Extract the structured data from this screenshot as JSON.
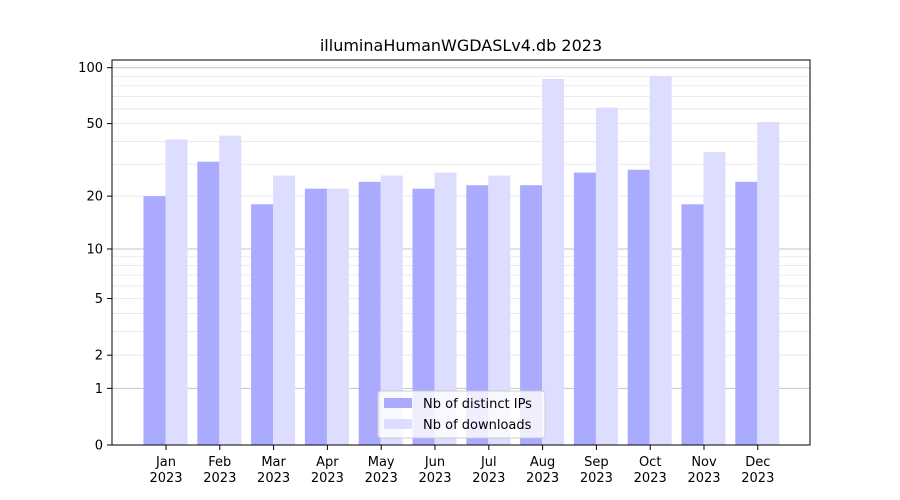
{
  "chart_data": {
    "type": "bar",
    "title": "illuminaHumanWGDASLv4.db 2023",
    "xlabel": "",
    "ylabel": "",
    "y_scale": "log1p",
    "ylim": [
      0,
      110
    ],
    "y_ticks": [
      0,
      1,
      2,
      5,
      10,
      20,
      50,
      100
    ],
    "grid": "horizontal",
    "legend_position": "bottom-center",
    "categories": [
      [
        "Jan",
        "2023"
      ],
      [
        "Feb",
        "2023"
      ],
      [
        "Mar",
        "2023"
      ],
      [
        "Apr",
        "2023"
      ],
      [
        "May",
        "2023"
      ],
      [
        "Jun",
        "2023"
      ],
      [
        "Jul",
        "2023"
      ],
      [
        "Aug",
        "2023"
      ],
      [
        "Sep",
        "2023"
      ],
      [
        "Oct",
        "2023"
      ],
      [
        "Nov",
        "2023"
      ],
      [
        "Dec",
        "2023"
      ]
    ],
    "series": [
      {
        "name": "Nb of distinct IPs",
        "color": "#aaaaff",
        "values": [
          20,
          31,
          18,
          22,
          24,
          22,
          23,
          23,
          27,
          28,
          18,
          24
        ]
      },
      {
        "name": "Nb of downloads",
        "color": "#ddddff",
        "values": [
          41,
          43,
          26,
          22,
          26,
          27,
          26,
          87,
          61,
          90,
          35,
          51
        ]
      }
    ]
  }
}
